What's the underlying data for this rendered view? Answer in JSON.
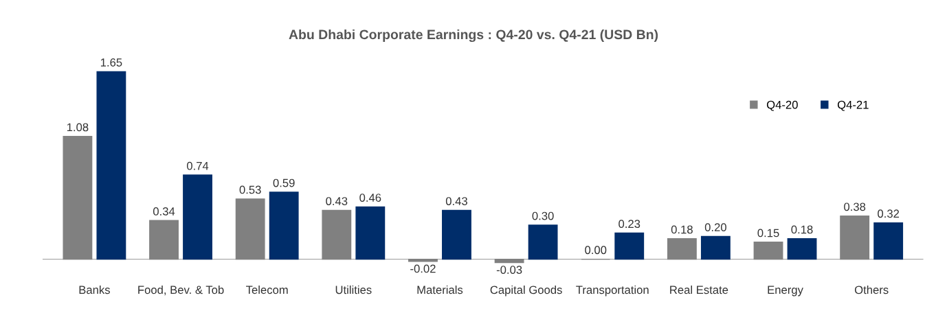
{
  "chart_data": {
    "type": "bar",
    "title": "Abu Dhabi Corporate Earnings : Q4-20 vs. Q4-21 (USD Bn)",
    "categories": [
      "Banks",
      "Food, Bev. & Tob",
      "Telecom",
      "Utilities",
      "Materials",
      "Capital Goods",
      "Transportation",
      "Real Estate",
      "Energy",
      "Others"
    ],
    "series": [
      {
        "name": "Q4-20",
        "color": "#808080",
        "values": [
          1.08,
          0.34,
          0.53,
          0.43,
          -0.02,
          -0.03,
          0.0,
          0.18,
          0.15,
          0.38
        ],
        "value_labels": [
          "1.08",
          "0.34",
          "0.53",
          "0.43",
          "-0.02",
          "-0.03",
          "0.00",
          "0.18",
          "0.15",
          "0.38"
        ]
      },
      {
        "name": "Q4-21",
        "color": "#002d6a",
        "values": [
          1.65,
          0.74,
          0.59,
          0.46,
          0.43,
          0.3,
          0.23,
          0.2,
          0.18,
          0.32
        ],
        "value_labels": [
          "1.65",
          "0.74",
          "0.59",
          "0.46",
          "0.43",
          "0.30",
          "0.23",
          "0.20",
          "0.18",
          "0.32"
        ]
      }
    ],
    "legend": "top right",
    "grid": false
  }
}
